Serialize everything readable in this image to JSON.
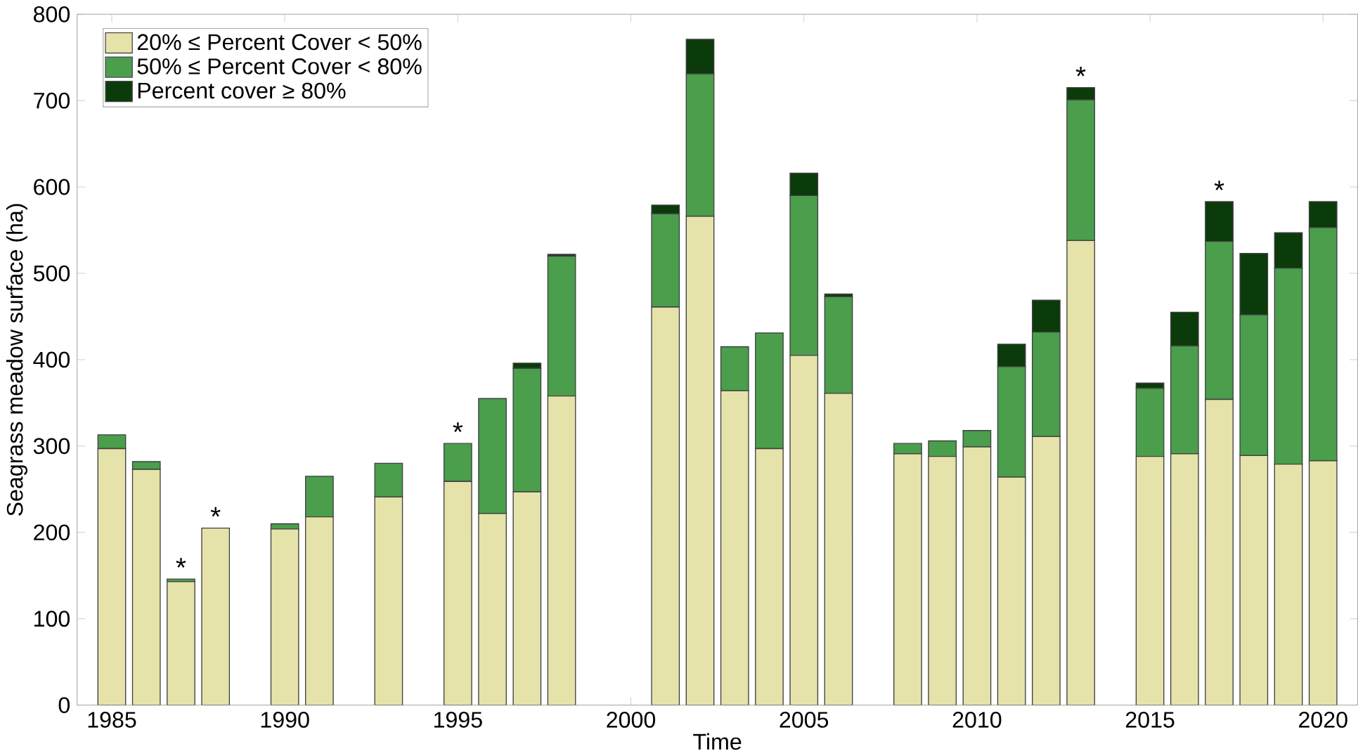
{
  "chart_data": {
    "type": "bar",
    "stacked": true,
    "xlabel": "Time",
    "ylabel": "Seagrass meadow surface (ha)",
    "x": [
      1985,
      1986,
      1987,
      1988,
      1990,
      1991,
      1993,
      1995,
      1996,
      1997,
      1998,
      2001,
      2002,
      2003,
      2004,
      2005,
      2006,
      2008,
      2009,
      2010,
      2011,
      2012,
      2013,
      2015,
      2016,
      2017,
      2018,
      2019,
      2020
    ],
    "series": [
      {
        "name": "20% ≤ Percent Cover < 50%",
        "color": "#e6e3aa",
        "values": [
          297,
          273,
          143,
          205,
          204,
          218,
          241,
          259,
          222,
          247,
          358,
          461,
          566,
          364,
          297,
          405,
          361,
          291,
          288,
          299,
          264,
          311,
          538,
          288,
          291,
          354,
          289,
          279,
          283
        ]
      },
      {
        "name": "50% ≤ Percent Cover < 80%",
        "color": "#4a9e4c",
        "values": [
          16,
          9,
          3,
          0,
          6,
          47,
          39,
          44,
          133,
          143,
          162,
          108,
          165,
          51,
          134,
          185,
          112,
          12,
          18,
          19,
          128,
          121,
          163,
          79,
          125,
          183,
          163,
          227,
          270
        ]
      },
      {
        "name": "Percent cover ≥ 80%",
        "color": "#0b3a0b",
        "values": [
          0,
          0,
          0,
          0,
          0,
          0,
          0,
          0,
          0,
          6,
          2,
          10,
          40,
          0,
          0,
          26,
          3,
          0,
          0,
          0,
          26,
          37,
          14,
          6,
          39,
          46,
          71,
          41,
          30
        ]
      }
    ],
    "annotations": [
      {
        "text": "*",
        "x": 1987,
        "y": 146
      },
      {
        "text": "*",
        "x": 1988,
        "y": 205
      },
      {
        "text": "*",
        "x": 1995,
        "y": 303
      },
      {
        "text": "*",
        "x": 2013,
        "y": 715
      },
      {
        "text": "*",
        "x": 2017,
        "y": 583
      }
    ],
    "xlim": [
      1984,
      2021
    ],
    "ylim": [
      0,
      800
    ],
    "xticks": [
      1985,
      1990,
      1995,
      2000,
      2005,
      2010,
      2015,
      2020
    ],
    "yticks": [
      0,
      100,
      200,
      300,
      400,
      500,
      600,
      700,
      800
    ],
    "legend": "top left"
  }
}
